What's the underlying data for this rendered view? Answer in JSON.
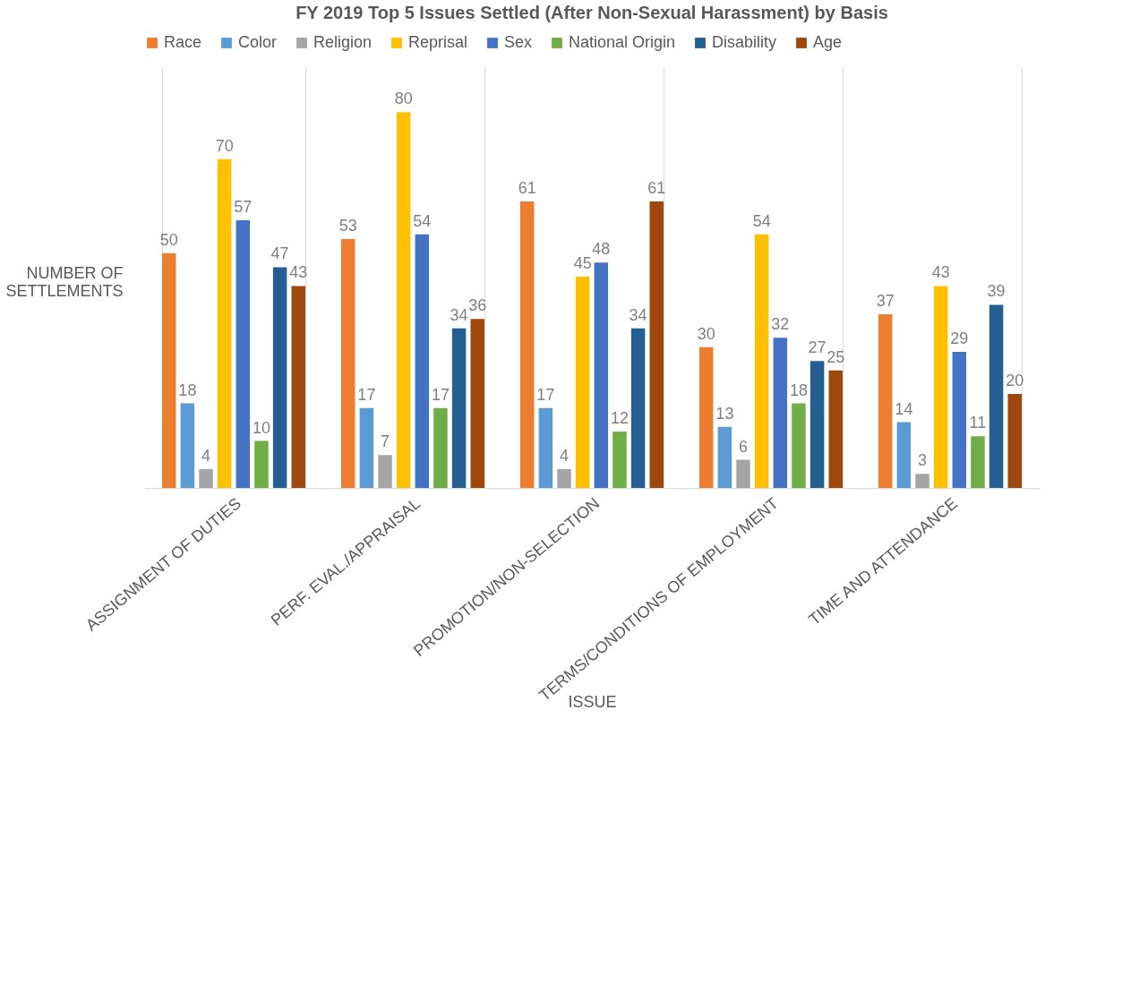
{
  "chart_data": {
    "type": "bar",
    "title": "FY 2019 Top 5 Issues Settled (After Non-Sexual Harassment) by Basis",
    "xlabel": "ISSUE",
    "ylabel": "NUMBER OF SETTLEMENTS",
    "categories": [
      "ASSIGNMENT OF DUTIES",
      "PERF. EVAL./APPRAISAL",
      "PROMOTION/NON-SELECTION",
      "TERMS/CONDITIONS OF EMPLOYMENT",
      "TIME AND ATTENDANCE"
    ],
    "series": [
      {
        "name": "Race",
        "color": "#ed7d31",
        "values": [
          50,
          53,
          61,
          30,
          37
        ]
      },
      {
        "name": "Color",
        "color": "#5b9bd5",
        "values": [
          18,
          17,
          17,
          13,
          14
        ]
      },
      {
        "name": "Religion",
        "color": "#a5a5a5",
        "values": [
          4,
          7,
          4,
          6,
          3
        ]
      },
      {
        "name": "Reprisal",
        "color": "#ffc000",
        "values": [
          70,
          80,
          45,
          54,
          43
        ]
      },
      {
        "name": "Sex",
        "color": "#4472c4",
        "values": [
          57,
          54,
          48,
          32,
          29
        ]
      },
      {
        "name": "National Origin",
        "color": "#70ad47",
        "values": [
          10,
          17,
          12,
          18,
          11
        ]
      },
      {
        "name": "Disability",
        "color": "#255e91",
        "values": [
          47,
          34,
          34,
          27,
          39
        ]
      },
      {
        "name": "Age",
        "color": "#9e480e",
        "values": [
          43,
          36,
          61,
          25,
          20
        ]
      }
    ],
    "data_labels": true,
    "grid": "x",
    "legend": "top",
    "tick_labels": "x"
  }
}
